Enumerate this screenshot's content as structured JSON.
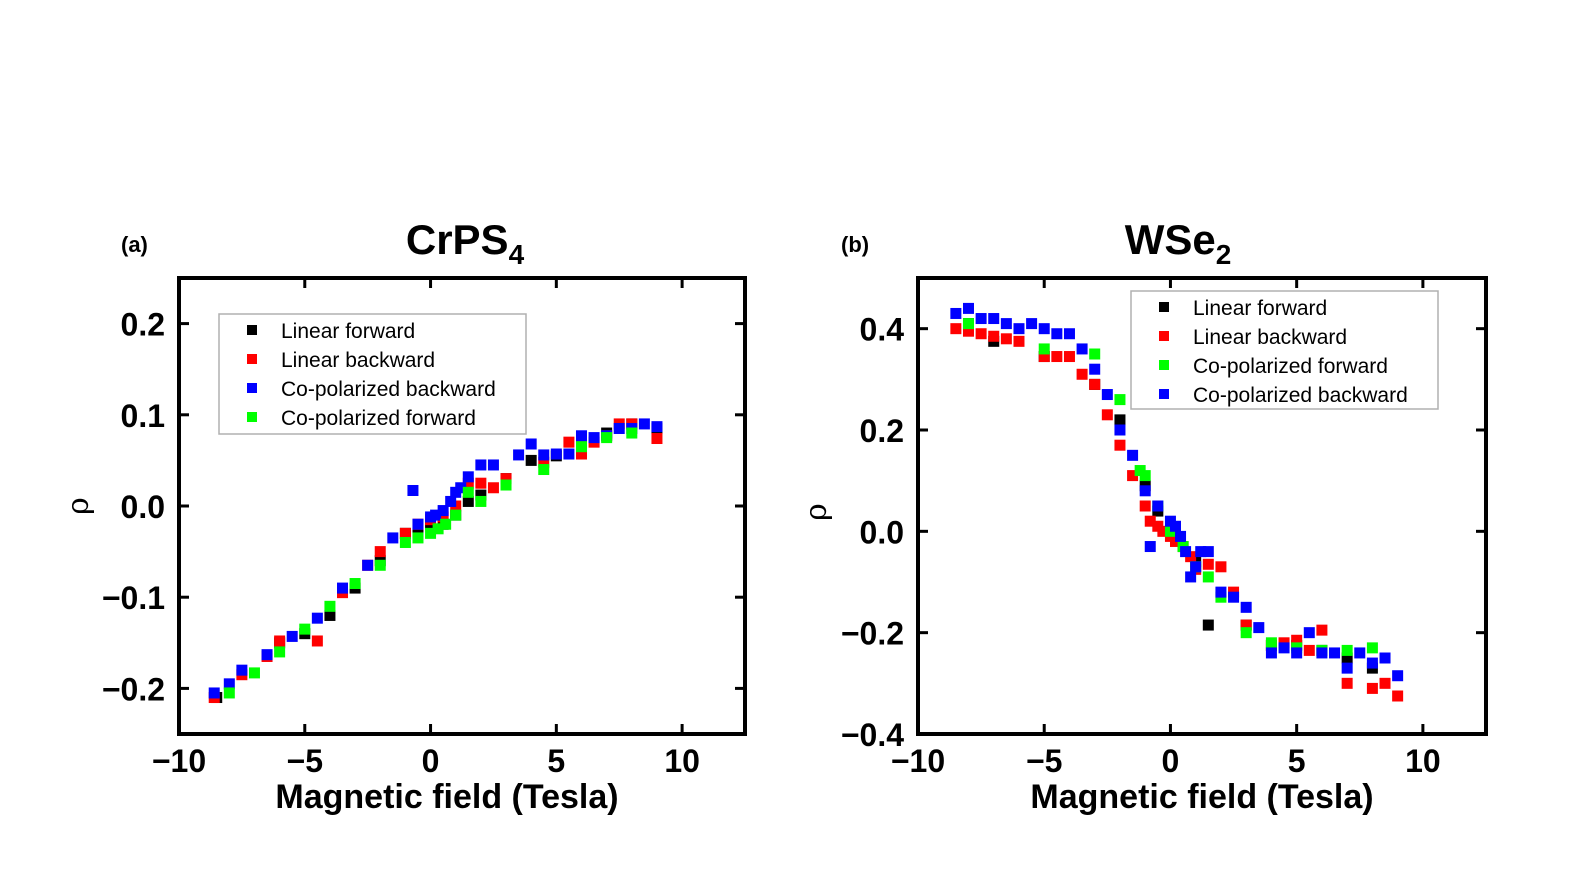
{
  "chart_data": [
    {
      "type": "scatter",
      "panel_label": "(a)",
      "title": "CrPS",
      "title_subscript": "4",
      "xlabel": "Magnetic field (Tesla)",
      "ylabel": "ρ",
      "xlim": [
        -10,
        12.5
      ],
      "ylim": [
        -0.25,
        0.25
      ],
      "xticks": [
        -10,
        -5,
        0,
        5,
        10
      ],
      "xtick_labels": [
        "−10",
        "−5",
        "0",
        "5",
        "10"
      ],
      "yticks": [
        -0.2,
        -0.1,
        0.0,
        0.1,
        0.2
      ],
      "ytick_labels": [
        "−0.2",
        "−0.1",
        "0.0",
        "0.1",
        "0.2"
      ],
      "legend_position": "top-left",
      "series": [
        {
          "name": "Linear forward",
          "color": "#000000",
          "x": [
            -8.5,
            -6,
            -5,
            -4,
            -3,
            -2,
            -1,
            -0.5,
            0,
            0.5,
            1,
            1.5,
            2,
            3,
            4,
            5,
            6,
            7,
            8,
            9
          ],
          "y": [
            -0.21,
            -0.15,
            -0.14,
            -0.12,
            -0.09,
            -0.06,
            -0.03,
            -0.03,
            -0.02,
            -0.02,
            -0.01,
            0.005,
            0.012,
            0.03,
            0.05,
            0.055,
            0.065,
            0.08,
            0.09,
            0.085
          ]
        },
        {
          "name": "Linear backward",
          "color": "#ff0000",
          "x": [
            -8.6,
            -7.5,
            -6.5,
            -6,
            -4.5,
            -3.5,
            -2.5,
            -2,
            -1,
            -0.5,
            0,
            0.5,
            1,
            1.5,
            2,
            2.5,
            3,
            4.5,
            5.5,
            6,
            6.5,
            7,
            7.5,
            8,
            9
          ],
          "y": [
            -0.21,
            -0.185,
            -0.165,
            -0.148,
            -0.148,
            -0.095,
            -0.065,
            -0.05,
            -0.03,
            -0.02,
            -0.015,
            -0.012,
            0.0,
            0.025,
            0.025,
            0.02,
            0.03,
            0.048,
            0.07,
            0.057,
            0.07,
            0.077,
            0.09,
            0.09,
            0.074
          ]
        },
        {
          "name": "Co-polarized backward",
          "color": "#0000ff",
          "x": [
            -8.6,
            -8,
            -7.5,
            -6.5,
            -5.5,
            -4.5,
            -3.5,
            -2.5,
            -1.5,
            -0.7,
            -0.5,
            0,
            0.2,
            0.5,
            0.8,
            1.0,
            1.2,
            1.5,
            2,
            2.5,
            3.5,
            4,
            4.5,
            5,
            5.5,
            6,
            6.5,
            7,
            7.5,
            8,
            8.5,
            9
          ],
          "y": [
            -0.205,
            -0.195,
            -0.18,
            -0.163,
            -0.143,
            -0.123,
            -0.09,
            -0.065,
            -0.035,
            0.017,
            -0.02,
            -0.012,
            -0.01,
            -0.005,
            0.005,
            0.015,
            0.02,
            0.032,
            0.045,
            0.045,
            0.056,
            0.068,
            0.056,
            0.057,
            0.057,
            0.077,
            0.075,
            0.077,
            0.085,
            0.085,
            0.09,
            0.087
          ]
        },
        {
          "name": "Co-polarized forward",
          "color": "#00ff00",
          "x": [
            -8,
            -7,
            -6,
            -5,
            -4,
            -3,
            -2,
            -1,
            -0.5,
            0,
            0.3,
            0.6,
            1,
            1.5,
            2,
            3,
            4.5,
            6,
            7,
            8
          ],
          "y": [
            -0.205,
            -0.183,
            -0.16,
            -0.135,
            -0.11,
            -0.085,
            -0.065,
            -0.04,
            -0.035,
            -0.03,
            -0.025,
            -0.02,
            -0.01,
            0.015,
            0.005,
            0.023,
            0.04,
            0.065,
            0.075,
            0.08
          ]
        }
      ]
    },
    {
      "type": "scatter",
      "panel_label": "(b)",
      "title": "WSe",
      "title_subscript": "2",
      "xlabel": "Magnetic field (Tesla)",
      "ylabel": "ρ",
      "xlim": [
        -10,
        12.5
      ],
      "ylim": [
        -0.4,
        0.5
      ],
      "xticks": [
        -10,
        -5,
        0,
        5,
        10
      ],
      "xtick_labels": [
        "−10",
        "−5",
        "0",
        "5",
        "10"
      ],
      "yticks": [
        -0.4,
        -0.2,
        0.0,
        0.2,
        0.4
      ],
      "ytick_labels": [
        "−0.4",
        "−0.2",
        "0.0",
        "0.2",
        "0.4"
      ],
      "legend_position": "top-right",
      "series": [
        {
          "name": "Linear forward",
          "color": "#000000",
          "x": [
            -8,
            -7,
            -5,
            -3,
            -2,
            -1,
            -0.5,
            0,
            0.5,
            1,
            1.5,
            3,
            4,
            5,
            6,
            7,
            8
          ],
          "y": [
            0.41,
            0.375,
            0.345,
            0.29,
            0.22,
            0.09,
            0.04,
            0.0,
            -0.03,
            -0.06,
            -0.185,
            -0.185,
            -0.225,
            -0.225,
            -0.235,
            -0.25,
            -0.27
          ]
        },
        {
          "name": "Linear backward",
          "color": "#ff0000",
          "x": [
            -8.5,
            -8,
            -7.5,
            -7,
            -6.5,
            -6,
            -5,
            -4.5,
            -4,
            -3.5,
            -3,
            -2.5,
            -2,
            -1.5,
            -1,
            -0.8,
            -0.5,
            -0.3,
            0,
            0.2,
            0.5,
            0.8,
            1,
            1.5,
            2,
            2.5,
            3,
            4,
            4.5,
            5,
            5.5,
            6,
            7,
            8,
            8.5,
            9
          ],
          "y": [
            0.4,
            0.395,
            0.39,
            0.385,
            0.38,
            0.375,
            0.345,
            0.345,
            0.345,
            0.31,
            0.29,
            0.23,
            0.17,
            0.11,
            0.05,
            0.02,
            0.01,
            0.0,
            -0.01,
            -0.02,
            -0.03,
            -0.05,
            -0.075,
            -0.065,
            -0.07,
            -0.12,
            -0.185,
            -0.225,
            -0.22,
            -0.215,
            -0.235,
            -0.195,
            -0.3,
            -0.31,
            -0.3,
            -0.325
          ]
        },
        {
          "name": "Co-polarized forward",
          "color": "#00ff00",
          "x": [
            -8,
            -5,
            -3,
            -2,
            -1.2,
            -1,
            -0.5,
            0,
            0.5,
            1,
            1.5,
            2,
            3,
            4,
            5,
            6,
            7,
            8
          ],
          "y": [
            0.41,
            0.36,
            0.35,
            0.26,
            0.12,
            0.11,
            0.05,
            0.0,
            -0.03,
            -0.07,
            -0.09,
            -0.13,
            -0.2,
            -0.22,
            -0.23,
            -0.235,
            -0.235,
            -0.23
          ]
        },
        {
          "name": "Co-polarized backward",
          "color": "#0000ff",
          "x": [
            -8.5,
            -8,
            -7.5,
            -7,
            -6.5,
            -6,
            -5.5,
            -5,
            -4.5,
            -4,
            -3.5,
            -3,
            -2.5,
            -2,
            -1.5,
            -1,
            -0.8,
            -0.5,
            0,
            0.2,
            0.4,
            0.6,
            0.8,
            1.0,
            1.2,
            1.5,
            2,
            2.5,
            3,
            3.5,
            4,
            4.5,
            5,
            5.5,
            6,
            6.5,
            7,
            7.5,
            8,
            8.5,
            9
          ],
          "y": [
            0.43,
            0.44,
            0.42,
            0.42,
            0.41,
            0.4,
            0.41,
            0.4,
            0.39,
            0.39,
            0.36,
            0.32,
            0.27,
            0.2,
            0.15,
            0.08,
            -0.03,
            0.05,
            0.02,
            0.01,
            -0.01,
            -0.04,
            -0.09,
            -0.07,
            -0.04,
            -0.04,
            -0.12,
            -0.13,
            -0.15,
            -0.19,
            -0.24,
            -0.23,
            -0.24,
            -0.2,
            -0.24,
            -0.24,
            -0.27,
            -0.24,
            -0.26,
            -0.25,
            -0.285
          ]
        }
      ]
    }
  ]
}
